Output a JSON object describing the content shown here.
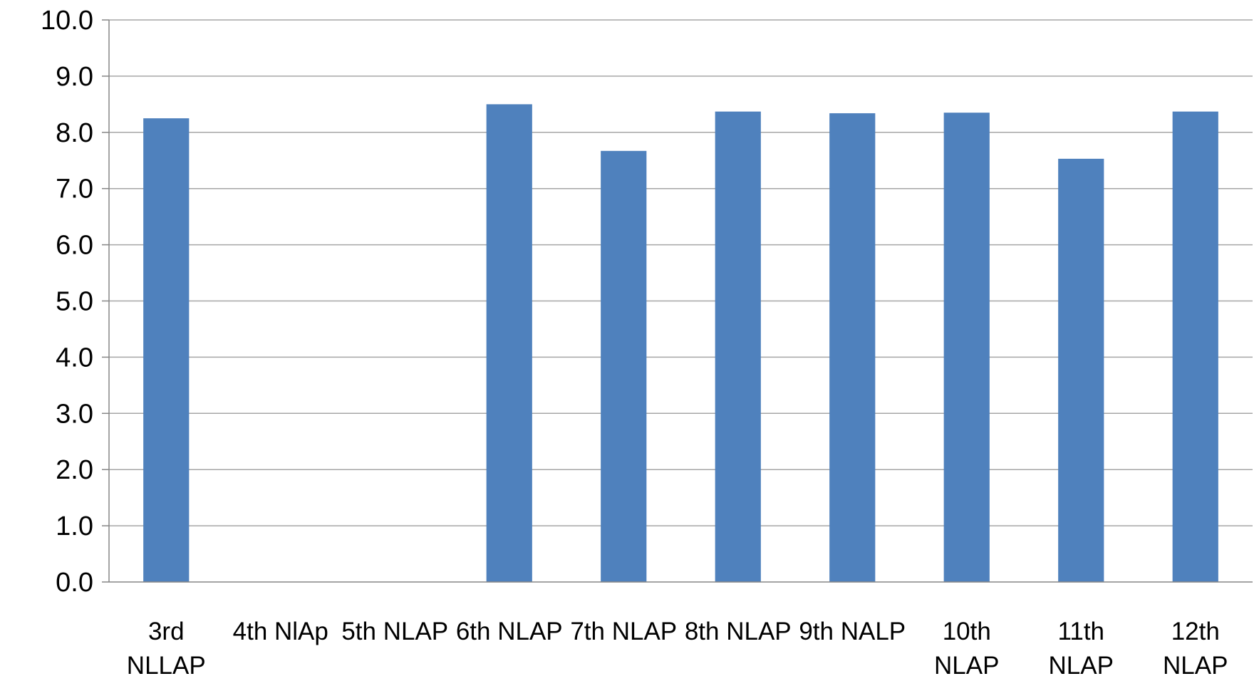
{
  "chart_data": {
    "type": "bar",
    "title": "",
    "xlabel": "",
    "ylabel": "",
    "ylim": [
      0,
      10
    ],
    "yticks": [
      "0.0",
      "1.0",
      "2.0",
      "3.0",
      "4.0",
      "5.0",
      "6.0",
      "7.0",
      "8.0",
      "9.0",
      "10.0"
    ],
    "grid": true,
    "legend": "none",
    "categories": [
      [
        "3rd",
        "NLLAP"
      ],
      [
        "4th NlAp"
      ],
      [
        "5th NLAP"
      ],
      [
        "6th NLAP"
      ],
      [
        "7th NLAP"
      ],
      [
        "8th NLAP"
      ],
      [
        "9th NALP"
      ],
      [
        "10th",
        "NLAP"
      ],
      [
        "11th",
        "NLAP"
      ],
      [
        "12th",
        "NLAP"
      ]
    ],
    "values": [
      8.25,
      null,
      null,
      8.5,
      7.67,
      8.37,
      8.34,
      8.35,
      7.53,
      8.37
    ],
    "bar_color": "#4F81BD",
    "gridline_color": "#A6A6A6",
    "axis_color": "#868686"
  }
}
